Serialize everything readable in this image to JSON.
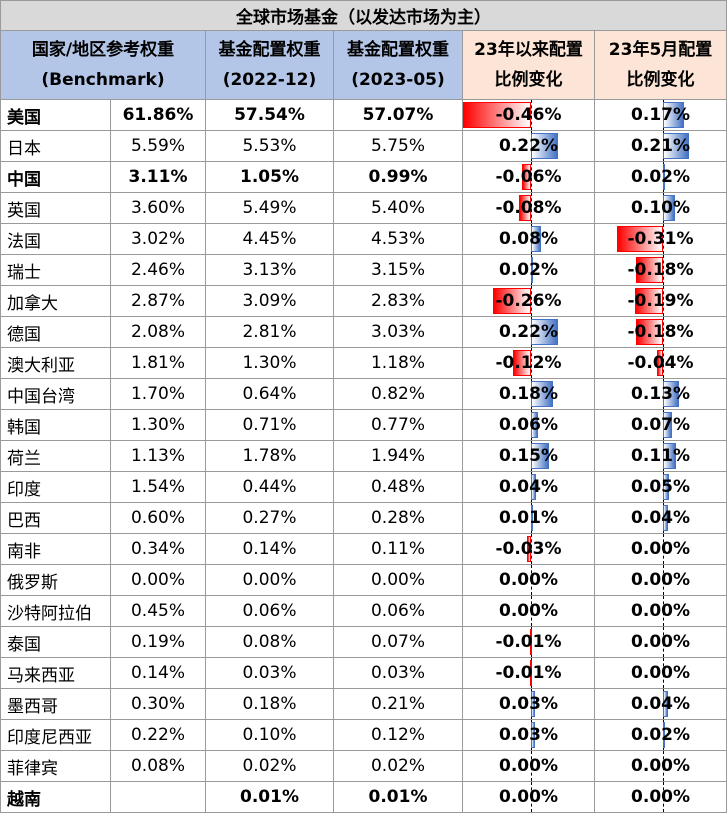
{
  "title": "全球市场基金（以发达市场为主）",
  "headers": {
    "country": [
      "国家/地区参考权重",
      "(Benchmark)"
    ],
    "w2022": [
      "基金配置权重",
      "(2022-12)"
    ],
    "w2023": [
      "基金配置权重",
      "(2023-05)"
    ],
    "chg23": [
      "23年以来配置",
      "比例变化"
    ],
    "chgmay": [
      "23年5月配置",
      "比例变化"
    ]
  },
  "rows": [
    {
      "country": "美国",
      "bench": "61.86%",
      "w2022": "57.54%",
      "w2023": "57.07%",
      "chg": "-0.46%",
      "chgv": -0.46,
      "may": "0.17%",
      "mayv": 0.17,
      "bold": true
    },
    {
      "country": "日本",
      "bench": "5.59%",
      "w2022": "5.53%",
      "w2023": "5.75%",
      "chg": "0.22%",
      "chgv": 0.22,
      "may": "0.21%",
      "mayv": 0.21,
      "bold": false
    },
    {
      "country": "中国",
      "bench": "3.11%",
      "w2022": "1.05%",
      "w2023": "0.99%",
      "chg": "-0.06%",
      "chgv": -0.06,
      "may": "0.02%",
      "mayv": 0.02,
      "bold": true
    },
    {
      "country": "英国",
      "bench": "3.60%",
      "w2022": "5.49%",
      "w2023": "5.40%",
      "chg": "-0.08%",
      "chgv": -0.08,
      "may": "0.10%",
      "mayv": 0.1,
      "bold": false
    },
    {
      "country": "法国",
      "bench": "3.02%",
      "w2022": "4.45%",
      "w2023": "4.53%",
      "chg": "0.08%",
      "chgv": 0.08,
      "may": "-0.31%",
      "mayv": -0.31,
      "bold": false
    },
    {
      "country": "瑞士",
      "bench": "2.46%",
      "w2022": "3.13%",
      "w2023": "3.15%",
      "chg": "0.02%",
      "chgv": 0.02,
      "may": "-0.18%",
      "mayv": -0.18,
      "bold": false
    },
    {
      "country": "加拿大",
      "bench": "2.87%",
      "w2022": "3.09%",
      "w2023": "2.83%",
      "chg": "-0.26%",
      "chgv": -0.26,
      "may": "-0.19%",
      "mayv": -0.19,
      "bold": false
    },
    {
      "country": "德国",
      "bench": "2.08%",
      "w2022": "2.81%",
      "w2023": "3.03%",
      "chg": "0.22%",
      "chgv": 0.22,
      "may": "-0.18%",
      "mayv": -0.18,
      "bold": false
    },
    {
      "country": "澳大利亚",
      "bench": "1.81%",
      "w2022": "1.30%",
      "w2023": "1.18%",
      "chg": "-0.12%",
      "chgv": -0.12,
      "may": "-0.04%",
      "mayv": -0.04,
      "bold": false
    },
    {
      "country": "中国台湾",
      "bench": "1.70%",
      "w2022": "0.64%",
      "w2023": "0.82%",
      "chg": "0.18%",
      "chgv": 0.18,
      "may": "0.13%",
      "mayv": 0.13,
      "bold": false
    },
    {
      "country": "韩国",
      "bench": "1.30%",
      "w2022": "0.71%",
      "w2023": "0.77%",
      "chg": "0.06%",
      "chgv": 0.06,
      "may": "0.07%",
      "mayv": 0.07,
      "bold": false
    },
    {
      "country": "荷兰",
      "bench": "1.13%",
      "w2022": "1.78%",
      "w2023": "1.94%",
      "chg": "0.15%",
      "chgv": 0.15,
      "may": "0.11%",
      "mayv": 0.11,
      "bold": false
    },
    {
      "country": "印度",
      "bench": "1.54%",
      "w2022": "0.44%",
      "w2023": "0.48%",
      "chg": "0.04%",
      "chgv": 0.04,
      "may": "0.05%",
      "mayv": 0.05,
      "bold": false
    },
    {
      "country": "巴西",
      "bench": "0.60%",
      "w2022": "0.27%",
      "w2023": "0.28%",
      "chg": "0.01%",
      "chgv": 0.01,
      "may": "0.04%",
      "mayv": 0.04,
      "bold": false
    },
    {
      "country": "南非",
      "bench": "0.34%",
      "w2022": "0.14%",
      "w2023": "0.11%",
      "chg": "-0.03%",
      "chgv": -0.03,
      "may": "0.00%",
      "mayv": 0.0,
      "bold": false
    },
    {
      "country": "俄罗斯",
      "bench": "0.00%",
      "w2022": "0.00%",
      "w2023": "0.00%",
      "chg": "0.00%",
      "chgv": 0.0,
      "may": "0.00%",
      "mayv": 0.0,
      "bold": false
    },
    {
      "country": "沙特阿拉伯",
      "bench": "0.45%",
      "w2022": "0.06%",
      "w2023": "0.06%",
      "chg": "0.00%",
      "chgv": 0.0,
      "may": "0.00%",
      "mayv": 0.0,
      "bold": false
    },
    {
      "country": "泰国",
      "bench": "0.19%",
      "w2022": "0.08%",
      "w2023": "0.07%",
      "chg": "-0.01%",
      "chgv": -0.01,
      "may": "0.00%",
      "mayv": 0.0,
      "bold": false
    },
    {
      "country": "马来西亚",
      "bench": "0.14%",
      "w2022": "0.03%",
      "w2023": "0.03%",
      "chg": "-0.01%",
      "chgv": -0.01,
      "may": "0.00%",
      "mayv": 0.0,
      "bold": false
    },
    {
      "country": "墨西哥",
      "bench": "0.30%",
      "w2022": "0.18%",
      "w2023": "0.21%",
      "chg": "0.03%",
      "chgv": 0.03,
      "may": "0.04%",
      "mayv": 0.04,
      "bold": false
    },
    {
      "country": "印度尼西亚",
      "bench": "0.22%",
      "w2022": "0.10%",
      "w2023": "0.12%",
      "chg": "0.03%",
      "chgv": 0.03,
      "may": "0.02%",
      "mayv": 0.02,
      "bold": false
    },
    {
      "country": "菲律宾",
      "bench": "0.08%",
      "w2022": "0.02%",
      "w2023": "0.02%",
      "chg": "0.00%",
      "chgv": 0.0,
      "may": "0.00%",
      "mayv": 0.0,
      "bold": false
    },
    {
      "country": "越南",
      "bench": "",
      "w2022": "0.01%",
      "w2023": "0.01%",
      "chg": "0.00%",
      "chgv": 0.0,
      "may": "0.00%",
      "mayv": 0.0,
      "bold": true
    }
  ]
}
